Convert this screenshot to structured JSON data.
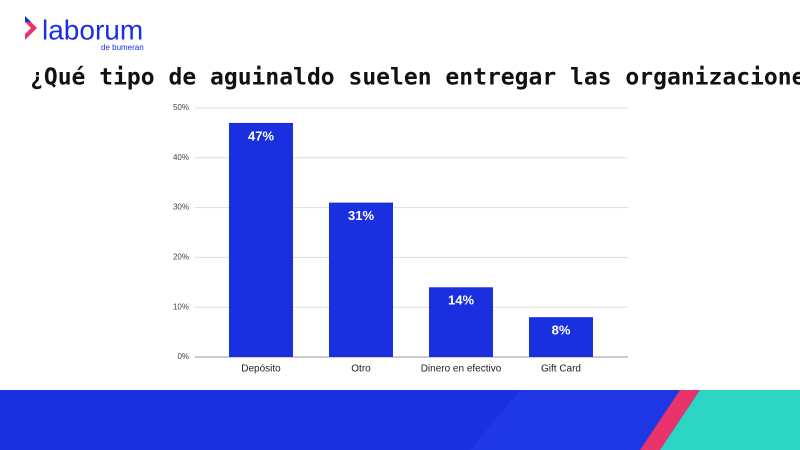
{
  "logo": {
    "name": "laborum",
    "tagline": "de bumeran"
  },
  "chart_data": {
    "type": "bar",
    "title": "¿Qué tipo de aguinaldo suelen entregar las organizaciones?",
    "categories": [
      "Depósito",
      "Otro",
      "Dinero en efectivo",
      "Gift Card"
    ],
    "values": [
      47,
      31,
      14,
      8
    ],
    "value_labels": [
      "47%",
      "31%",
      "14%",
      "8%"
    ],
    "color": "#1a2fe0",
    "ylim": [
      0,
      50
    ],
    "yticks": [
      {
        "value": 0,
        "label": "0%"
      },
      {
        "value": 10,
        "label": "10%"
      },
      {
        "value": 20,
        "label": "20%"
      },
      {
        "value": 30,
        "label": "30%"
      },
      {
        "value": 40,
        "label": "40%"
      },
      {
        "value": 50,
        "label": "50%"
      }
    ],
    "grid": true
  }
}
